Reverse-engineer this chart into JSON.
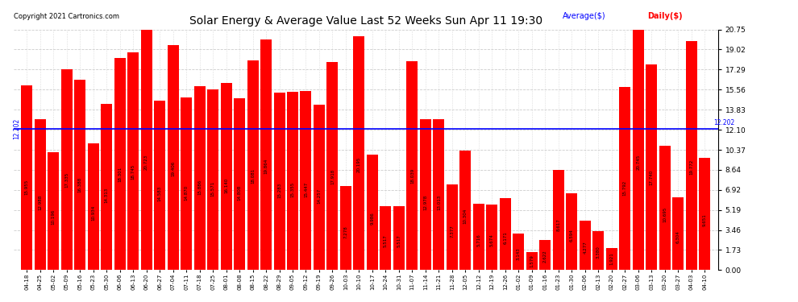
{
  "title": "Solar Energy & Average Value Last 52 Weeks Sun Apr 11 19:30",
  "copyright": "Copyright 2021 Cartronics.com",
  "average_label": "Average($)",
  "daily_label": "Daily($)",
  "average_value": 12.202,
  "bar_color": "#ff0000",
  "average_line_color": "#0000ff",
  "background_color": "#ffffff",
  "grid_color": "#cccccc",
  "ylim": [
    0,
    20.75
  ],
  "yticks": [
    0.0,
    1.73,
    3.46,
    5.19,
    6.92,
    8.64,
    10.37,
    12.1,
    13.83,
    15.56,
    17.29,
    19.02,
    20.75
  ],
  "categories": [
    "04-18",
    "04-25",
    "05-02",
    "05-09",
    "05-16",
    "05-23",
    "05-30",
    "06-06",
    "06-13",
    "06-20",
    "06-27",
    "07-04",
    "07-11",
    "07-18",
    "07-25",
    "08-01",
    "08-08",
    "08-15",
    "08-22",
    "08-29",
    "09-05",
    "09-12",
    "09-19",
    "09-26",
    "10-03",
    "10-10",
    "10-17",
    "10-24",
    "10-31",
    "11-07",
    "11-14",
    "11-21",
    "11-28",
    "12-05",
    "12-12",
    "12-19",
    "12-26",
    "01-02",
    "01-09",
    "01-16",
    "01-23",
    "01-30",
    "02-06",
    "02-13",
    "02-20",
    "02-27",
    "03-06",
    "03-13",
    "03-20",
    "03-27",
    "04-03",
    "04-10"
  ],
  "values": [
    15.955,
    12.988,
    10.196,
    17.335,
    16.388,
    10.934,
    14.313,
    18.301,
    18.745,
    20.723,
    14.583,
    19.406,
    14.87,
    15.886,
    15.571,
    16.14,
    14.808,
    18.081,
    19.864,
    15.283,
    15.355,
    15.447,
    14.257,
    17.918,
    7.278,
    20.195,
    9.986,
    5.517,
    5.517,
    18.039,
    12.978,
    13.013,
    7.377,
    10.304,
    5.716,
    5.674,
    6.171,
    3.143,
    1.579,
    2.622,
    8.617,
    6.594,
    4.277,
    3.38,
    1.921,
    15.792,
    20.745,
    17.74,
    10.695,
    6.304,
    19.772,
    9.651
  ]
}
